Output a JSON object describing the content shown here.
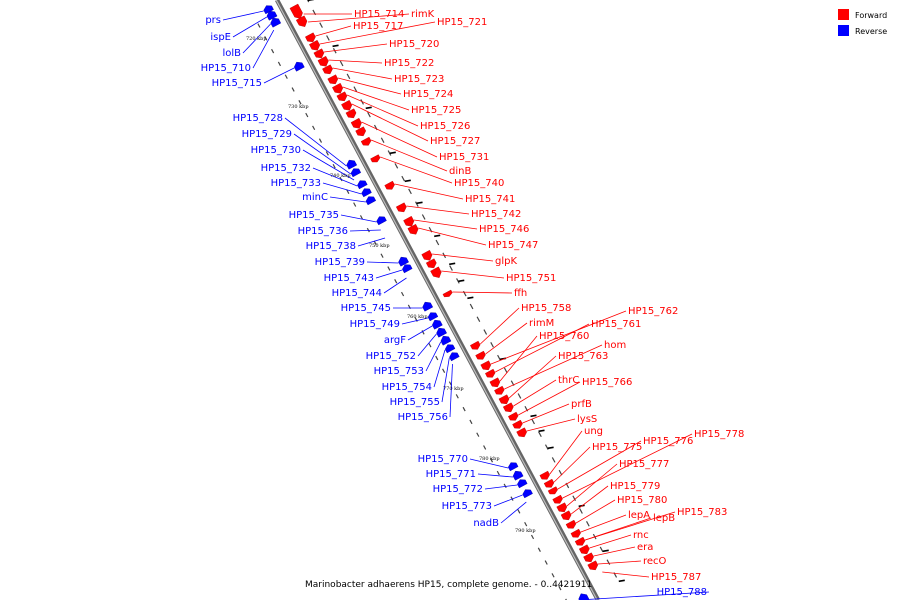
{
  "legend": {
    "forward": {
      "label": "Forward",
      "color": "#ff0000"
    },
    "reverse": {
      "label": "Reverse",
      "color": "#0000ff"
    }
  },
  "caption": "Marinobacter adhaerens HP15, complete genome. - 0..4421911",
  "backbone": {
    "start_kbp": 716,
    "end_kbp": 796
  },
  "ticks": [
    "720 kbp",
    "730 kbp",
    "740 kbp",
    "750 kbp",
    "760 kbp",
    "770 kbp",
    "780 kbp",
    "790 kbp"
  ],
  "forward_labels": [
    "HP15_714",
    "rimK",
    "HP15_717",
    "HP15_721",
    "HP15_720",
    "HP15_722",
    "HP15_723",
    "HP15_724",
    "HP15_725",
    "HP15_726",
    "HP15_727",
    "HP15_731",
    "dinB",
    "HP15_740",
    "HP15_741",
    "HP15_742",
    "HP15_746",
    "HP15_747",
    "glpK",
    "HP15_751",
    "ffh",
    "HP15_758",
    "rimM",
    "HP15_762",
    "HP15_761",
    "HP15_760",
    "hom",
    "HP15_763",
    "thrC",
    "HP15_766",
    "prfB",
    "lysS",
    "ung",
    "HP15_775",
    "HP15_776",
    "HP15_778",
    "HP15_777",
    "HP15_779",
    "HP15_780",
    "lepA",
    "lepB",
    "HP15_783",
    "rnc",
    "era",
    "recO",
    "HP15_787"
  ],
  "reverse_labels": [
    "prs",
    "ispE",
    "lolB",
    "HP15_710",
    "HP15_715",
    "HP15_728",
    "HP15_729",
    "HP15_730",
    "HP15_732",
    "HP15_733",
    "minC",
    "HP15_735",
    "HP15_736",
    "HP15_738",
    "HP15_739",
    "HP15_743",
    "HP15_744",
    "HP15_745",
    "HP15_749",
    "argF",
    "HP15_752",
    "HP15_753",
    "HP15_754",
    "HP15_755",
    "HP15_756",
    "HP15_770",
    "HP15_771",
    "HP15_772",
    "HP15_773",
    "nadB",
    "HP15_788"
  ]
}
